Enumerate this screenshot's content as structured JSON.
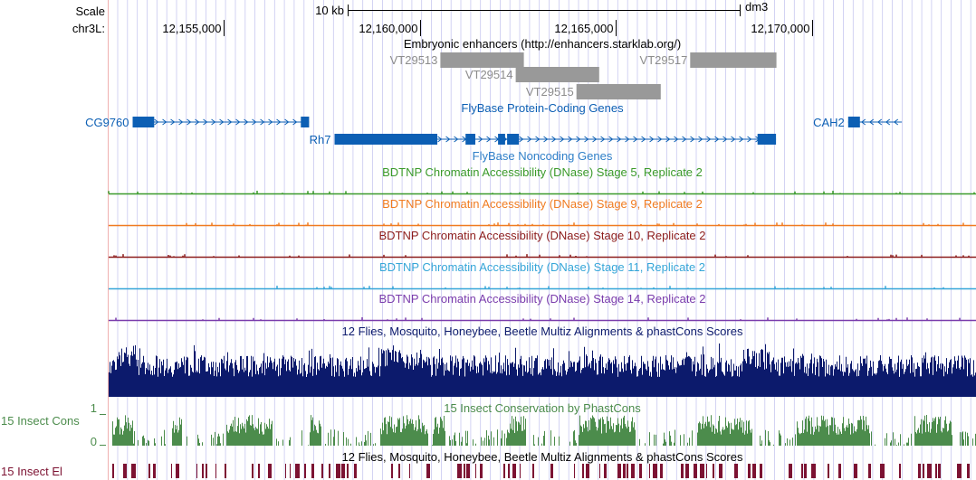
{
  "ruler": {
    "scale_label": "Scale",
    "chrom_label": "chr3L:",
    "scale_bar_label": "10 kb",
    "assembly": "dm3",
    "ticks": [
      "12,155,000",
      "12,160,000",
      "12,165,000",
      "12,170,000"
    ]
  },
  "colors": {
    "grid": "#c8c8f0",
    "enhancer_box": "#999999",
    "enhancer_label": "#8c8c8c",
    "gene": "#0c5fb4",
    "noncoding_title": "#2f7fc8",
    "stage5": "#3a9a2a",
    "stage9": "#f07b20",
    "stage10": "#8c1c1c",
    "stage11": "#36a6d8",
    "stage14": "#7a3cac",
    "multiz": "#0c1a6c",
    "phastcons": "#4c8c4c",
    "elements": "#7c1232",
    "left_margin_line": "#f0b0b0"
  },
  "tracks": {
    "enhancers": {
      "title": "Embryonic enhancers (http://enhancers.starklab.org/)",
      "items": [
        {
          "name": "VT29513",
          "start": 12160530,
          "end": 12162660
        },
        {
          "name": "VT29514",
          "start": 12162450,
          "end": 12164580
        },
        {
          "name": "VT29515",
          "start": 12164000,
          "end": 12166150
        },
        {
          "name": "VT29517",
          "start": 12166900,
          "end": 12169100
        }
      ]
    },
    "genes": {
      "title": "FlyBase Protein-Coding Genes",
      "items": [
        {
          "name": "CG9760",
          "start": 12152680,
          "end": 12157180,
          "strand": "-",
          "exons": [
            [
              12152680,
              12153230
            ],
            [
              12156970,
              12157180
            ]
          ]
        },
        {
          "name": "Rh7",
          "start": 12157830,
          "end": 12169090,
          "strand": "-",
          "exons": [
            [
              12157830,
              12159550
            ],
            [
              12159550,
              12160450
            ],
            [
              12161170,
              12161420
            ],
            [
              12162000,
              12162180
            ],
            [
              12162230,
              12162530
            ],
            [
              12168620,
              12169090
            ]
          ]
        },
        {
          "name": "CAH2",
          "start": 12170930,
          "end": 12172300,
          "strand": "+",
          "exons": [
            [
              12170930,
              12171230
            ]
          ]
        }
      ]
    },
    "noncoding_title": "FlyBase Noncoding Genes",
    "dnase": [
      {
        "title": "BDTNP Chromatin Accessibility (DNase) Stage 5, Replicate 2",
        "color_key": "stage5"
      },
      {
        "title": "BDTNP Chromatin Accessibility (DNase) Stage 9, Replicate 2",
        "color_key": "stage9"
      },
      {
        "title": "BDTNP Chromatin Accessibility (DNase) Stage 10, Replicate 2",
        "color_key": "stage10"
      },
      {
        "title": "BDTNP Chromatin Accessibility (DNase) Stage 11, Replicate 2",
        "color_key": "stage11"
      },
      {
        "title": "BDTNP Chromatin Accessibility (DNase) Stage 14, Replicate 2",
        "color_key": "stage14"
      }
    ],
    "multiz_title": "12 Flies, Mosquito, Honeybee, Beetle Multiz Alignments & phastCons Scores",
    "phastcons": {
      "title": "15 Insect Conservation by PhastCons",
      "side_label": "15 Insect Cons",
      "y_max_label": "1",
      "y_min_label": "0"
    },
    "elements": {
      "title": "12 Flies, Mosquito, Honeybee, Beetle Multiz Alignments & phastCons Scores",
      "side_label": "15 Insect El"
    }
  }
}
